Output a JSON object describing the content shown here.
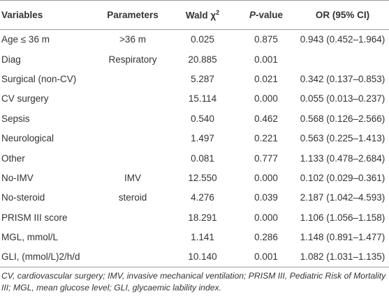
{
  "table": {
    "header": [
      {
        "text": "Variables"
      },
      {
        "text": "Parameters"
      },
      {
        "text": "Wald χ",
        "sup": "2"
      },
      {
        "italic": "P",
        "text": "-value"
      },
      {
        "text": "OR (95% CI)"
      }
    ],
    "rows": [
      [
        "Age ≤ 36 m",
        ">36 m",
        "0.025",
        "0.875",
        "0.943 (0.452–1.964)"
      ],
      [
        "Diag",
        "Respiratory",
        "20.885",
        "0.001",
        null
      ],
      [
        "Surgical (non-CV)",
        null,
        "5.287",
        "0.021",
        "0.342 (0.137–0.853)"
      ],
      [
        "CV surgery",
        null,
        "15.114",
        "0.000",
        "0.055 (0.013–0.237)"
      ],
      [
        "Sepsis",
        null,
        "0.540",
        "0.462",
        "0.568 (0.126–2.566)"
      ],
      [
        "Neurological",
        null,
        "1.497",
        "0.221",
        "0.563 (0.225–1.413)"
      ],
      [
        "Other",
        null,
        "0.081",
        "0.777",
        "1.133 (0.478–2.684)"
      ],
      [
        "No-IMV",
        "IMV",
        "12.550",
        "0.000",
        "0.102 (0.029–0.361)"
      ],
      [
        "No-steroid",
        "steroid",
        "4.276",
        "0.039",
        "2.187 (1.042–4.593)"
      ],
      [
        "PRISM III score",
        null,
        "18.291",
        "0.000",
        "1.106 (1.056–1.158)"
      ],
      [
        "MGL, mmol/L",
        null,
        "1.141",
        "0.286",
        "1.148 (0.891–1.477)"
      ],
      [
        "GLI, (mmol/L)2/h/d",
        null,
        "10.140",
        "0.001",
        "1.082 (1.031–1.135)"
      ]
    ]
  },
  "footnote": "CV, cardiovascular surgery; IMV, invasive mechanical ventilation; PRISM III, Pediatric Risk of Mortality III; MGL, mean glucose level; GLI, glycaemic lability index."
}
